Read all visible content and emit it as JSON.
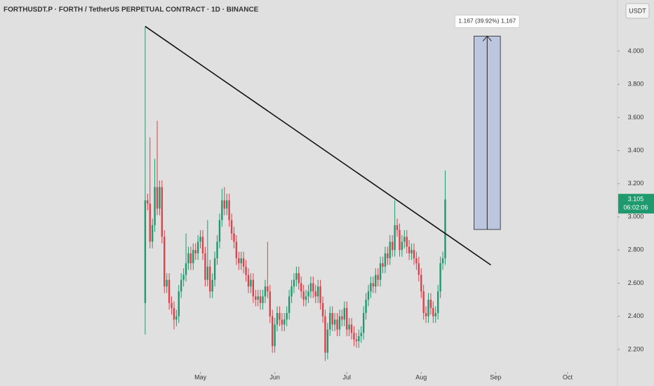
{
  "chart_data": {
    "type": "candlestick",
    "title": "FORTHUSDT.P · FORTH / TetherUS PERPETUAL CONTRACT · 1D · BINANCE",
    "currency": "USDT",
    "countdown": "06:02:06",
    "up_color": "#1f9a6e",
    "down_color": "#e0404a",
    "grid": false,
    "open": [
      2.48,
      3.1,
      3.08,
      2.85,
      2.95,
      3.18,
      3.05,
      3.18,
      2.88,
      2.58,
      2.62,
      2.48,
      2.45,
      2.38,
      2.4,
      2.55,
      2.62,
      2.65,
      2.72,
      2.78,
      2.72,
      2.8,
      2.78,
      2.85,
      2.88,
      2.78,
      2.62,
      2.7,
      2.55,
      2.62,
      2.75,
      2.85,
      2.98,
      3.1,
      3.05,
      3.1,
      2.98,
      2.9,
      2.85,
      2.75,
      2.72,
      2.75,
      2.7,
      2.65,
      2.58,
      2.62,
      2.52,
      2.5,
      2.52,
      2.48,
      2.52,
      2.58,
      2.55,
      2.4,
      2.22,
      2.35,
      2.42,
      2.38,
      2.35,
      2.38,
      2.42,
      2.52,
      2.58,
      2.62,
      2.66,
      2.6,
      2.55,
      2.5,
      2.52,
      2.55,
      2.6,
      2.55,
      2.52,
      2.58,
      2.48,
      2.4,
      2.18,
      2.32,
      2.42,
      2.35,
      2.38,
      2.32,
      2.4,
      2.38,
      2.45,
      2.32,
      2.35,
      2.3,
      2.26,
      2.25,
      2.28,
      2.3,
      2.42,
      2.5,
      2.55,
      2.6,
      2.58,
      2.65,
      2.62,
      2.72,
      2.7,
      2.78,
      2.75,
      2.85,
      2.8,
      2.95,
      2.92,
      2.8,
      2.85,
      2.88,
      2.82,
      2.78,
      2.8,
      2.75,
      2.72,
      2.65,
      2.55,
      2.42,
      2.4,
      2.5,
      2.45,
      2.4,
      2.42,
      2.55,
      2.72,
      2.75
    ],
    "high": [
      4.15,
      3.14,
      3.48,
      2.99,
      3.35,
      3.58,
      3.22,
      3.22,
      2.92,
      2.66,
      2.66,
      2.52,
      2.49,
      2.44,
      2.59,
      2.66,
      2.69,
      2.9,
      2.82,
      2.82,
      2.84,
      2.84,
      2.89,
      2.92,
      2.92,
      2.82,
      2.98,
      2.74,
      2.66,
      2.79,
      2.89,
      3.02,
      3.17,
      3.18,
      3.14,
      3.14,
      3.02,
      2.94,
      2.89,
      2.79,
      2.79,
      2.79,
      2.74,
      2.69,
      2.66,
      2.66,
      2.56,
      2.56,
      2.56,
      2.56,
      2.62,
      2.85,
      2.59,
      2.44,
      2.39,
      2.46,
      2.46,
      2.42,
      2.42,
      2.46,
      2.56,
      2.62,
      2.66,
      2.7,
      2.7,
      2.64,
      2.59,
      2.56,
      2.59,
      2.64,
      2.64,
      2.59,
      2.62,
      2.62,
      2.52,
      2.44,
      2.36,
      2.46,
      2.46,
      2.42,
      2.42,
      2.44,
      2.44,
      2.49,
      2.49,
      2.39,
      2.39,
      2.34,
      2.3,
      2.32,
      2.34,
      2.46,
      2.54,
      2.59,
      2.64,
      2.64,
      2.69,
      2.69,
      2.76,
      2.76,
      2.82,
      2.82,
      2.89,
      2.89,
      3.1,
      2.99,
      2.96,
      2.89,
      2.92,
      2.92,
      2.86,
      2.84,
      2.84,
      2.79,
      2.76,
      2.69,
      2.59,
      2.46,
      2.54,
      2.54,
      2.49,
      2.46,
      2.59,
      2.76,
      2.79,
      3.28
    ],
    "low": [
      2.29,
      3.04,
      2.81,
      2.81,
      2.91,
      3.01,
      3.01,
      2.84,
      2.54,
      2.54,
      2.44,
      2.41,
      2.32,
      2.34,
      2.36,
      2.51,
      2.58,
      2.61,
      2.68,
      2.68,
      2.68,
      2.74,
      2.74,
      2.81,
      2.74,
      2.58,
      2.58,
      2.51,
      2.51,
      2.58,
      2.71,
      2.81,
      2.94,
      3.01,
      3.01,
      2.94,
      2.86,
      2.81,
      2.71,
      2.68,
      2.68,
      2.66,
      2.61,
      2.54,
      2.54,
      2.48,
      2.46,
      2.46,
      2.44,
      2.44,
      2.48,
      2.51,
      2.36,
      2.18,
      2.18,
      2.31,
      2.34,
      2.31,
      2.31,
      2.34,
      2.38,
      2.48,
      2.54,
      2.58,
      2.56,
      2.51,
      2.46,
      2.46,
      2.48,
      2.51,
      2.51,
      2.48,
      2.48,
      2.44,
      2.36,
      2.13,
      2.14,
      2.28,
      2.31,
      2.31,
      2.28,
      2.28,
      2.34,
      2.34,
      2.28,
      2.28,
      2.26,
      2.22,
      2.21,
      2.21,
      2.24,
      2.26,
      2.38,
      2.46,
      2.51,
      2.54,
      2.54,
      2.58,
      2.58,
      2.66,
      2.66,
      2.71,
      2.71,
      2.76,
      2.76,
      2.88,
      2.76,
      2.76,
      2.81,
      2.78,
      2.74,
      2.74,
      2.71,
      2.68,
      2.61,
      2.51,
      2.38,
      2.36,
      2.36,
      2.41,
      2.36,
      2.36,
      2.38,
      2.51,
      2.68,
      2.71
    ],
    "close": [
      3.1,
      3.08,
      2.85,
      2.95,
      3.18,
      3.05,
      3.18,
      2.88,
      2.58,
      2.62,
      2.48,
      2.45,
      2.38,
      2.4,
      2.55,
      2.62,
      2.65,
      2.72,
      2.78,
      2.72,
      2.8,
      2.78,
      2.85,
      2.88,
      2.78,
      2.62,
      2.7,
      2.55,
      2.62,
      2.75,
      2.85,
      2.98,
      3.1,
      3.05,
      3.1,
      2.98,
      2.9,
      2.85,
      2.75,
      2.72,
      2.75,
      2.7,
      2.65,
      2.58,
      2.62,
      2.52,
      2.5,
      2.52,
      2.48,
      2.52,
      2.58,
      2.55,
      2.4,
      2.22,
      2.35,
      2.42,
      2.38,
      2.35,
      2.38,
      2.42,
      2.52,
      2.58,
      2.62,
      2.66,
      2.6,
      2.55,
      2.5,
      2.52,
      2.55,
      2.6,
      2.55,
      2.52,
      2.58,
      2.48,
      2.4,
      2.18,
      2.32,
      2.42,
      2.35,
      2.38,
      2.32,
      2.4,
      2.38,
      2.45,
      2.32,
      2.35,
      2.3,
      2.26,
      2.25,
      2.28,
      2.3,
      2.42,
      2.5,
      2.55,
      2.6,
      2.58,
      2.65,
      2.62,
      2.72,
      2.7,
      2.78,
      2.75,
      2.85,
      2.8,
      2.95,
      2.92,
      2.8,
      2.85,
      2.88,
      2.82,
      2.78,
      2.8,
      2.75,
      2.72,
      2.65,
      2.55,
      2.42,
      2.4,
      2.5,
      2.45,
      2.4,
      2.42,
      2.55,
      2.72,
      2.75,
      3.105
    ],
    "xlim": [
      -60.5,
      196.8
    ],
    "xticks": [
      {
        "value": 23,
        "label": "May"
      },
      {
        "value": 54,
        "label": "Jun"
      },
      {
        "value": 84,
        "label": "Jul"
      },
      {
        "value": 115,
        "label": "Aug"
      },
      {
        "value": 146,
        "label": "Sep"
      },
      {
        "value": 176,
        "label": "Oct"
      }
    ],
    "ylim": [
      2.064,
      4.309
    ],
    "yticks": [
      {
        "value": 2.2,
        "label": "2.200"
      },
      {
        "value": 2.4,
        "label": "2.400"
      },
      {
        "value": 2.6,
        "label": "2.600"
      },
      {
        "value": 2.8,
        "label": "2.800"
      },
      {
        "value": 3.0,
        "label": "3.000"
      },
      {
        "value": 3.2,
        "label": "3.200"
      },
      {
        "value": 3.4,
        "label": "3.400"
      },
      {
        "value": 3.6,
        "label": "3.600"
      },
      {
        "value": 3.8,
        "label": "3.800"
      },
      {
        "value": 4.0,
        "label": "4.000"
      }
    ],
    "trendline": {
      "x": [
        0,
        144
      ],
      "y": [
        4.15,
        2.71
      ]
    },
    "measure": {
      "x": [
        137,
        148
      ],
      "y": [
        2.924,
        4.091
      ],
      "label": "1.167 (39.92%) 1,167"
    }
  }
}
